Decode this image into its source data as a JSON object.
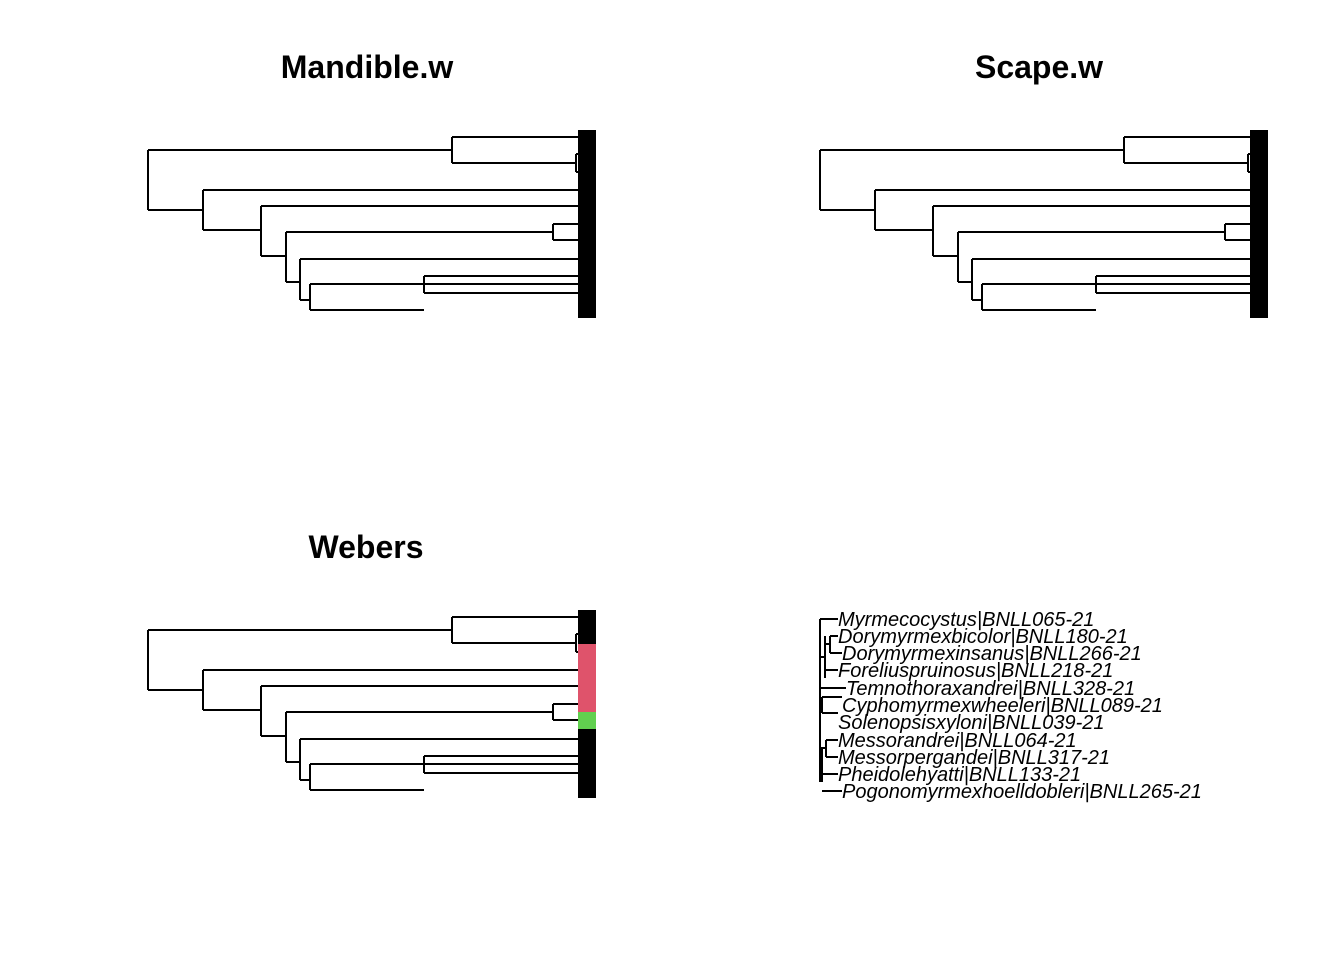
{
  "panels": {
    "mandible": {
      "title": "Mandible.w",
      "colors": [
        "#000000",
        "#000000",
        "#000000",
        "#000000",
        "#000000",
        "#000000",
        "#000000",
        "#000000",
        "#000000",
        "#000000",
        "#000000"
      ]
    },
    "scape": {
      "title": "Scape.w",
      "colors": [
        "#000000",
        "#000000",
        "#000000",
        "#000000",
        "#000000",
        "#000000",
        "#000000",
        "#000000",
        "#000000",
        "#000000",
        "#000000"
      ]
    },
    "webers": {
      "title": "Webers",
      "colors": [
        "#000000",
        "#000000",
        "#DF536B",
        "#DF536B",
        "#DF536B",
        "#DF536B",
        "#61D04F",
        "#000000",
        "#000000",
        "#000000",
        "#000000"
      ]
    }
  },
  "tips": [
    "Myrmecocystus|BNLL065-21",
    "Dorymyrmexbicolor|BNLL180-21",
    "Dorymyrmexinsanus|BNLL266-21",
    "Foreliuspruinosus|BNLL218-21",
    "Temnothoraxandrei|BNLL328-21",
    "Cyphomyrmexwheeleri|BNLL089-21",
    "Solenopsisxyloni|BNLL039-21",
    "Messorandrei|BNLL064-21",
    "Messorpergandei|BNLL317-21",
    "Pheidolehyatti|BNLL133-21",
    "Pogonomyrmexhoelldobleri|BNLL265-21"
  ],
  "colors": {
    "black": "#000000",
    "red": "#DF536B",
    "green": "#61D04F"
  }
}
